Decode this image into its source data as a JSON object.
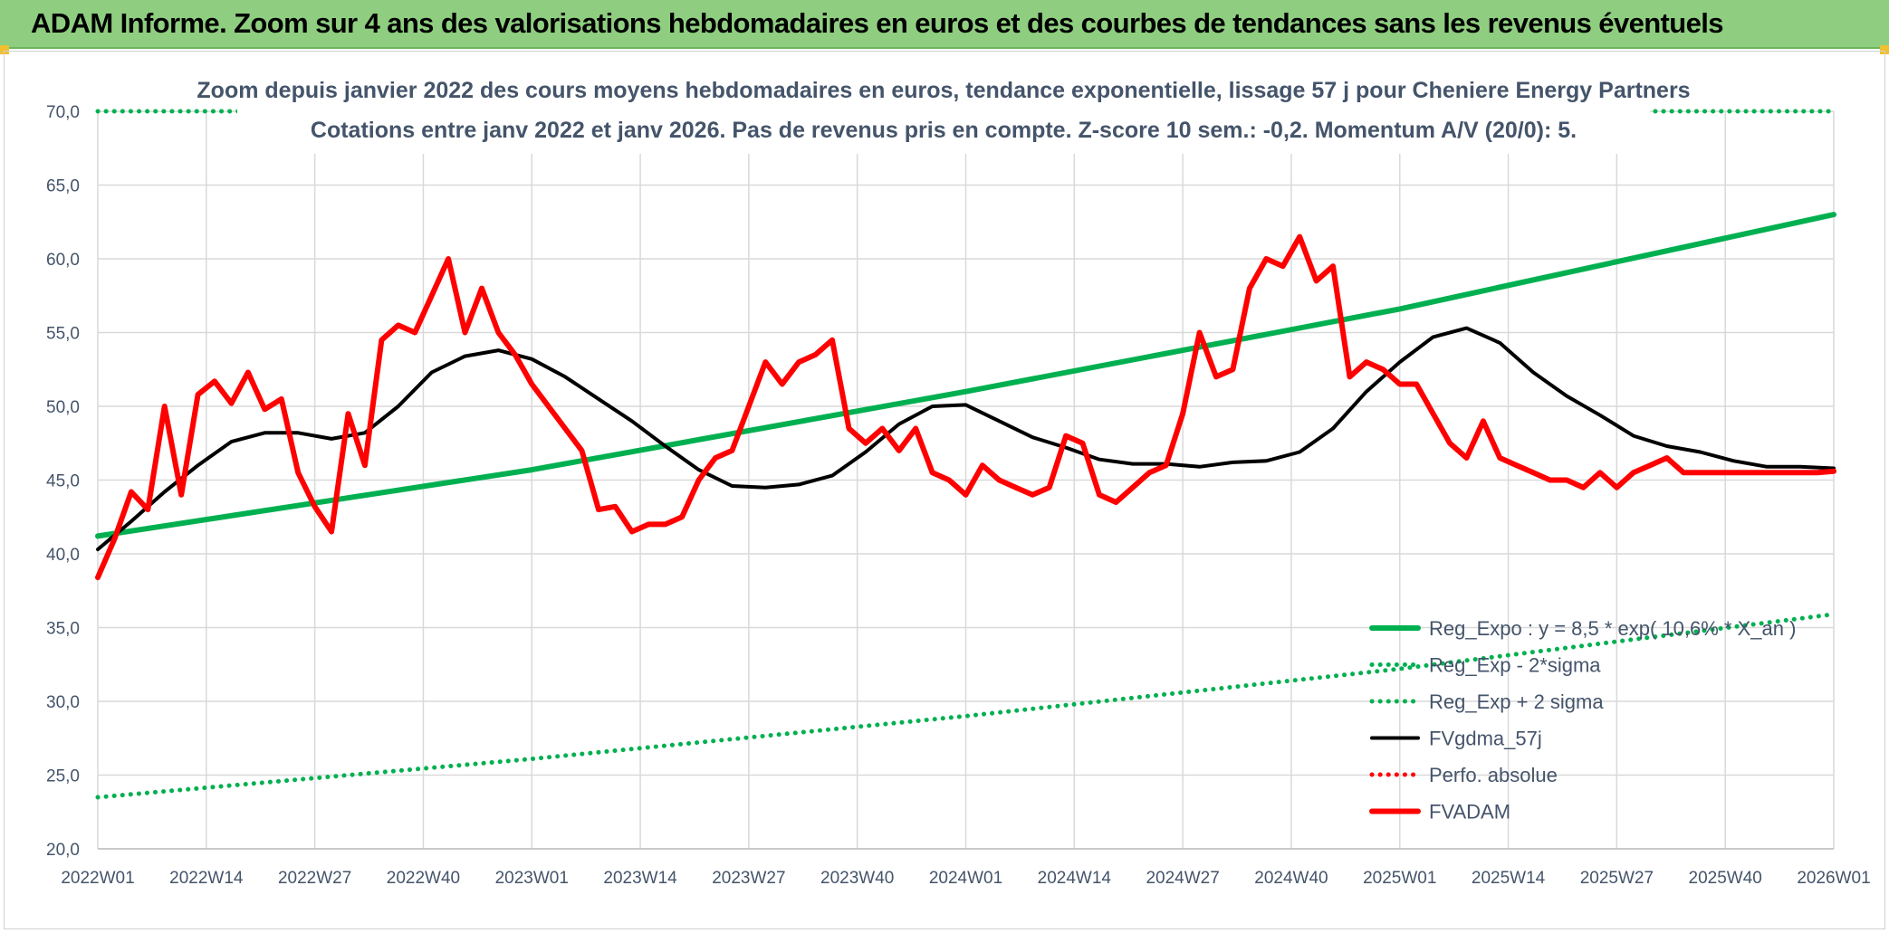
{
  "banner": {
    "title": "ADAM Informe. Zoom sur 4 ans des valorisations hebdomadaires en euros et des courbes de tendances sans les revenus éventuels"
  },
  "colors": {
    "banner_bg": "#8fce80",
    "expo": "#00b050",
    "black": "#000000",
    "red": "#ff0000",
    "text": "#44546a",
    "grid": "#d9d9d9"
  },
  "chart_data": {
    "type": "line",
    "title": "Zoom depuis janvier 2022 des cours moyens hebdomadaires en euros, tendance exponentielle, lissage 57 j pour Cheniere Energy Partners",
    "subtitle": "Cotations entre janv 2022 et janv 2026. Pas de revenus pris en compte. Z-score 10 sem.: -0,2. Momentum A/V (20/0): 5.",
    "x_ticks": [
      "2022W01",
      "2022W14",
      "2022W27",
      "2022W40",
      "2023W01",
      "2023W14",
      "2023W27",
      "2023W40",
      "2024W01",
      "2024W14",
      "2024W27",
      "2024W40",
      "2025W01",
      "2025W14",
      "2025W27",
      "2025W40",
      "2026W01"
    ],
    "y_ticks": [
      "20,0",
      "25,0",
      "30,0",
      "35,0",
      "40,0",
      "45,0",
      "50,0",
      "55,0",
      "60,0",
      "65,0",
      "70,0"
    ],
    "ylim": [
      20,
      70
    ],
    "x_range_weeks": [
      0,
      208
    ],
    "grid": true,
    "legend_position": "bottom-right",
    "legend": [
      {
        "label": "Reg_Expo : y = 8,5 * exp( 10,6% * X_an )",
        "style": "solid-thick",
        "color": "#00b050"
      },
      {
        "label": "Reg_Exp - 2*sigma",
        "style": "dotted",
        "color": "#00b050"
      },
      {
        "label": "Reg_Exp + 2 sigma",
        "style": "dotted",
        "color": "#00b050"
      },
      {
        "label": "FVgdma_57j",
        "style": "solid",
        "color": "#000000"
      },
      {
        "label": "Perfo. absolue",
        "style": "dotted",
        "color": "#ff0000"
      },
      {
        "label": "FVADAM",
        "style": "solid-thick",
        "color": "#ff0000"
      }
    ],
    "series": [
      {
        "name": "Reg_Expo : y = 8,5 * exp( 10,6% * X_an )",
        "x": [
          0,
          52,
          104,
          156,
          208
        ],
        "y": [
          41.2,
          45.7,
          51.0,
          56.6,
          63.0
        ]
      },
      {
        "name": "Reg_Exp - 2*sigma",
        "x": [
          0,
          52,
          104,
          156,
          208
        ],
        "y": [
          23.5,
          26.1,
          29.0,
          32.2,
          35.9
        ]
      },
      {
        "name": "Reg_Exp + 2 sigma",
        "x": [
          0,
          208
        ],
        "y": [
          70.0,
          70.0
        ]
      },
      {
        "name": "FVgdma_57j",
        "x": [
          0,
          4,
          8,
          12,
          16,
          20,
          24,
          28,
          32,
          36,
          40,
          44,
          48,
          52,
          56,
          60,
          64,
          68,
          72,
          76,
          80,
          84,
          88,
          92,
          96,
          100,
          104,
          108,
          112,
          116,
          120,
          124,
          128,
          132,
          136,
          140,
          144,
          148,
          152,
          156,
          160,
          164,
          168,
          172,
          176,
          180,
          184,
          188,
          192,
          196,
          200,
          204,
          208
        ],
        "y": [
          40.3,
          42.2,
          44.2,
          46.0,
          47.6,
          48.2,
          48.2,
          47.8,
          48.2,
          50.0,
          52.3,
          53.4,
          53.8,
          53.2,
          52.0,
          50.5,
          49.0,
          47.3,
          45.7,
          44.6,
          44.5,
          44.7,
          45.3,
          46.9,
          48.8,
          50.0,
          50.1,
          49.0,
          47.9,
          47.2,
          46.4,
          46.1,
          46.1,
          45.9,
          46.2,
          46.3,
          46.9,
          48.5,
          51.0,
          53.0,
          54.7,
          55.3,
          54.3,
          52.3,
          50.7,
          49.4,
          48.0,
          47.3,
          46.9,
          46.3,
          45.9,
          45.9,
          45.8
        ]
      },
      {
        "name": "FVADAM",
        "x": [
          0,
          2,
          4,
          6,
          8,
          10,
          12,
          14,
          16,
          18,
          20,
          22,
          24,
          26,
          28,
          30,
          32,
          34,
          36,
          38,
          40,
          42,
          44,
          46,
          48,
          50,
          52,
          54,
          56,
          58,
          60,
          62,
          64,
          66,
          68,
          70,
          72,
          74,
          76,
          78,
          80,
          82,
          84,
          86,
          88,
          90,
          92,
          94,
          96,
          98,
          100,
          102,
          104,
          106,
          108,
          110,
          112,
          114,
          116,
          118,
          120,
          122,
          124,
          126,
          128,
          130,
          132,
          134,
          136,
          138,
          140,
          142,
          144,
          146,
          148,
          150,
          152,
          154,
          156,
          158,
          160,
          162,
          164,
          166,
          168,
          170,
          172,
          174,
          176,
          178,
          180,
          182,
          184,
          186,
          188,
          190,
          192,
          194,
          196,
          198,
          200,
          202,
          204,
          206,
          208
        ],
        "y": [
          38.4,
          41.0,
          44.2,
          43.0,
          50.0,
          44.0,
          50.8,
          51.7,
          50.2,
          52.3,
          49.8,
          50.5,
          45.5,
          43.2,
          41.5,
          49.5,
          46.0,
          54.5,
          55.5,
          55.0,
          57.5,
          60.0,
          55.0,
          58.0,
          55.0,
          53.5,
          51.5,
          50.0,
          48.5,
          47.0,
          43.0,
          43.2,
          41.5,
          42.0,
          42.0,
          42.5,
          45.0,
          46.5,
          47.0,
          50.0,
          53.0,
          51.5,
          53.0,
          53.5,
          54.5,
          48.5,
          47.5,
          48.5,
          47.0,
          48.5,
          45.5,
          45.0,
          44.0,
          46.0,
          45.0,
          44.5,
          44.0,
          44.5,
          48.0,
          47.5,
          44.0,
          43.5,
          44.5,
          45.5,
          46.0,
          49.5,
          55.0,
          52.0,
          52.5,
          58.0,
          60.0,
          59.5,
          61.5,
          58.5,
          59.5,
          52.0,
          53.0,
          52.5,
          51.5,
          51.5,
          49.5,
          47.5,
          46.5,
          49.0,
          46.5,
          46.0,
          45.5,
          45.0,
          45.0,
          44.5,
          45.5,
          44.5,
          45.5,
          46.0,
          46.5,
          45.5,
          45.5,
          45.5,
          45.5,
          45.5,
          45.5,
          45.5,
          45.5,
          45.5,
          45.6
        ]
      }
    ]
  }
}
